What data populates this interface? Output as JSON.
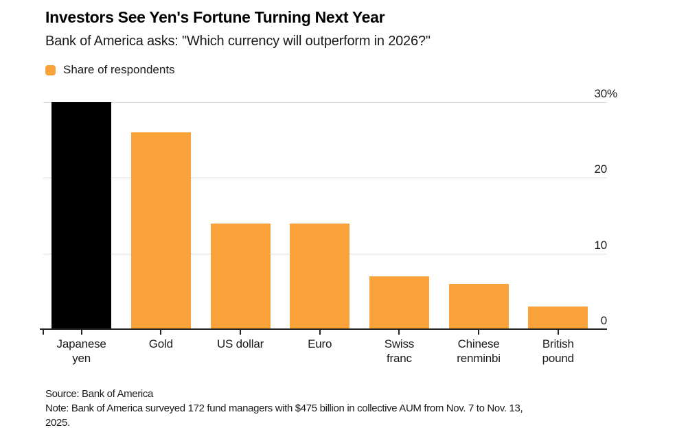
{
  "header": {
    "title": "Investors See Yen's Fortune Turning Next Year",
    "subtitle": "Bank of America asks: \"Which currency will outperform in 2026?\"",
    "legend": {
      "label": "Share of respondents",
      "swatch_color": "#F9A23A"
    }
  },
  "chart_data": {
    "type": "bar",
    "title": "Investors See Yen's Fortune Turning Next Year",
    "subtitle": "Bank of America asks: \"Which currency will outperform in 2026?\"",
    "series_name": "Share of respondents",
    "unit": "%",
    "categories": [
      "Japanese yen",
      "Gold",
      "US dollar",
      "Euro",
      "Swiss franc",
      "Chinese renminbi",
      "British pound"
    ],
    "category_labels": [
      "Japanese\nyen",
      "Gold",
      "US dollar",
      "Euro",
      "Swiss\nfranc",
      "Chinese\nrenminbi",
      "British\npound"
    ],
    "values": [
      30,
      26,
      14,
      14,
      7,
      6,
      3
    ],
    "bar_colors": [
      "#000000",
      "#F9A23A",
      "#F9A23A",
      "#F9A23A",
      "#F9A23A",
      "#F9A23A",
      "#F9A23A"
    ],
    "highlight_category": "Japanese yen",
    "ylim": [
      0,
      30
    ],
    "y_ticks": [
      {
        "label": "0",
        "value": 0
      },
      {
        "label": "10",
        "value": 10
      },
      {
        "label": "20",
        "value": 20
      },
      {
        "label": "30",
        "suffix": "%",
        "value": 30
      }
    ],
    "grid": "horizontal",
    "legend_position": "top-left",
    "y_axis_side": "right"
  },
  "footer": {
    "source": "Source: Bank of America",
    "note": "Note: Bank of America surveyed 172 fund managers with $475 billion in collective AUM from Nov. 7 to Nov. 13,\n2025."
  }
}
